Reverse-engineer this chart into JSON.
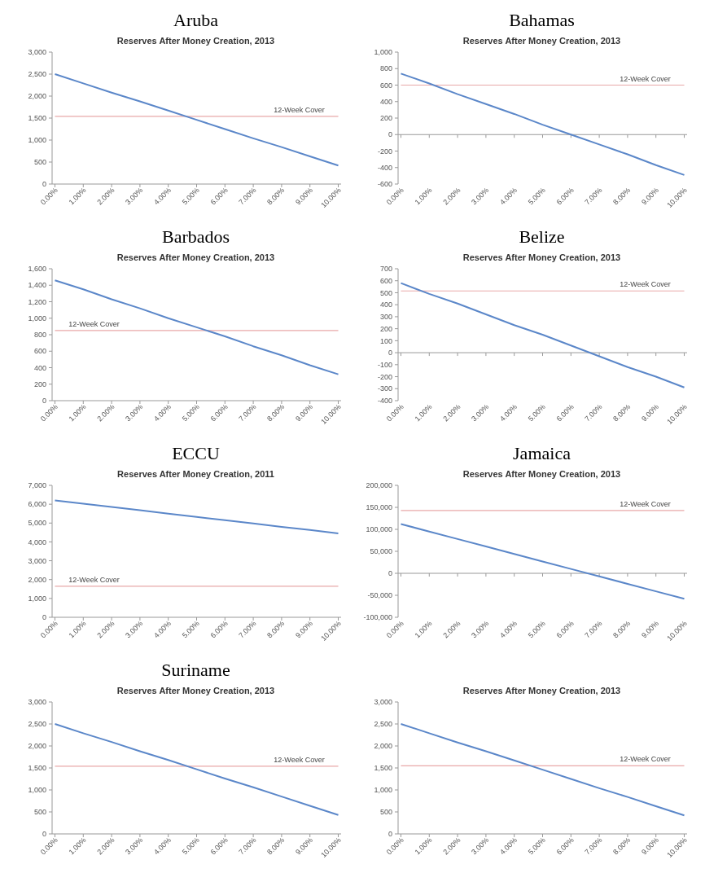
{
  "chart_data": [
    {
      "type": "line",
      "title": "Aruba",
      "subtitle": "Reserves After Money Creation, 2013",
      "categories": [
        "0.00%",
        "1.00%",
        "2.00%",
        "3.00%",
        "4.00%",
        "5.00%",
        "6.00%",
        "7.00%",
        "8.00%",
        "9.00%",
        "10.00%"
      ],
      "series": [
        {
          "color": "#5b87c9",
          "values": [
            2500,
            2290,
            2080,
            1880,
            1670,
            1460,
            1250,
            1040,
            840,
            630,
            420
          ]
        }
      ],
      "ylim": [
        0,
        3000
      ],
      "yticks": [
        0,
        500,
        {
          "value": 1000,
          "label": "1,000"
        },
        {
          "value": 1500,
          "label": "1,500"
        },
        {
          "value": 2000,
          "label": "2,000"
        },
        {
          "value": 2500,
          "label": "2,500"
        },
        {
          "value": 3000,
          "label": "3,000"
        }
      ],
      "ref_lines": [
        {
          "axis": "y",
          "value": 1540,
          "label": "12-Week Cover",
          "color": "#e8a8a8"
        }
      ]
    },
    {
      "type": "line",
      "title": "Bahamas",
      "subtitle": "Reserves After Money Creation, 2013",
      "categories": [
        "0.00%",
        "1.00%",
        "2.00%",
        "3.00%",
        "4.00%",
        "5.00%",
        "6.00%",
        "7.00%",
        "8.00%",
        "9.00%",
        "10.00%"
      ],
      "series": [
        {
          "color": "#5b87c9",
          "values": [
            740,
            620,
            490,
            370,
            250,
            120,
            0,
            -120,
            -240,
            -370,
            -490
          ]
        }
      ],
      "ylim": [
        -600,
        1000
      ],
      "yticks": [
        -600,
        -400,
        -200,
        0,
        200,
        400,
        600,
        800,
        {
          "value": 1000,
          "label": "1,000"
        }
      ],
      "ref_lines": [
        {
          "axis": "y",
          "value": 600,
          "label": "12-Week Cover",
          "color": "#e8a8a8"
        }
      ]
    },
    {
      "type": "line",
      "title": "Barbados",
      "subtitle": "Reserves After Money Creation, 2013",
      "categories": [
        "0.00%",
        "1.00%",
        "2.00%",
        "3.00%",
        "4.00%",
        "5.00%",
        "6.00%",
        "7.00%",
        "8.00%",
        "9.00%",
        "10.00%"
      ],
      "series": [
        {
          "color": "#5b87c9",
          "values": [
            1460,
            1350,
            1230,
            1120,
            1000,
            890,
            780,
            660,
            550,
            430,
            320
          ]
        }
      ],
      "ylim": [
        0,
        1600
      ],
      "yticks": [
        0,
        200,
        400,
        600,
        800,
        {
          "value": 1000,
          "label": "1,000"
        },
        {
          "value": 1200,
          "label": "1,200"
        },
        {
          "value": 1400,
          "label": "1,400"
        },
        {
          "value": 1600,
          "label": "1,600"
        }
      ],
      "ref_lines": [
        {
          "axis": "y",
          "value": 850,
          "label": "12-Week Cover",
          "color": "#e8a8a8"
        }
      ]
    },
    {
      "type": "line",
      "title": "Belize",
      "subtitle": "Reserves After Money Creation, 2013",
      "categories": [
        "0.00%",
        "1.00%",
        "2.00%",
        "3.00%",
        "4.00%",
        "5.00%",
        "6.00%",
        "7.00%",
        "8.00%",
        "9.00%",
        "10.00%"
      ],
      "series": [
        {
          "color": "#5b87c9",
          "values": [
            580,
            490,
            410,
            320,
            230,
            150,
            60,
            -30,
            -120,
            -200,
            -290
          ]
        }
      ],
      "ylim": [
        -400,
        700
      ],
      "yticks": [
        -400,
        -300,
        -200,
        -100,
        0,
        100,
        200,
        300,
        400,
        500,
        600,
        700
      ],
      "ref_lines": [
        {
          "axis": "y",
          "value": 515,
          "label": "12-Week Cover",
          "color": "#e8a8a8"
        }
      ]
    },
    {
      "type": "line",
      "title": "ECCU",
      "subtitle": "Reserves After Money Creation, 2011",
      "categories": [
        "0.00%",
        "1.00%",
        "2.00%",
        "3.00%",
        "4.00%",
        "5.00%",
        "6.00%",
        "7.00%",
        "8.00%",
        "9.00%",
        "10.00%"
      ],
      "series": [
        {
          "color": "#5b87c9",
          "values": [
            6200,
            6030,
            5850,
            5680,
            5500,
            5330,
            5150,
            4980,
            4800,
            4630,
            4450
          ]
        }
      ],
      "ylim": [
        0,
        7000
      ],
      "yticks": [
        0,
        {
          "value": 1000,
          "label": "1,000"
        },
        {
          "value": 2000,
          "label": "2,000"
        },
        {
          "value": 3000,
          "label": "3,000"
        },
        {
          "value": 4000,
          "label": "4,000"
        },
        {
          "value": 5000,
          "label": "5,000"
        },
        {
          "value": 6000,
          "label": "6,000"
        },
        {
          "value": 7000,
          "label": "7,000"
        }
      ],
      "ref_lines": [
        {
          "axis": "y",
          "value": 1650,
          "label": "12-Week Cover",
          "color": "#e8a8a8"
        }
      ]
    },
    {
      "type": "line",
      "title": "Jamaica",
      "subtitle": "Reserves After Money Creation, 2013",
      "categories": [
        "0.00%",
        "1.00%",
        "2.00%",
        "3.00%",
        "4.00%",
        "5.00%",
        "6.00%",
        "7.00%",
        "8.00%",
        "9.00%",
        "10.00%"
      ],
      "series": [
        {
          "color": "#5b87c9",
          "values": [
            112000,
            95000,
            78000,
            61000,
            44000,
            27000,
            10000,
            -7000,
            -24000,
            -41000,
            -58000
          ]
        }
      ],
      "ylim": [
        -100000,
        200000
      ],
      "yticks": [
        {
          "value": -100000,
          "label": "-100,000"
        },
        {
          "value": -50000,
          "label": "-50,000"
        },
        0,
        {
          "value": 50000,
          "label": "50,000"
        },
        {
          "value": 100000,
          "label": "100,000"
        },
        {
          "value": 150000,
          "label": "150,000"
        },
        {
          "value": 200000,
          "label": "200,000"
        }
      ],
      "ref_lines": [
        {
          "axis": "y",
          "value": 143000,
          "label": "12-Week Cover",
          "color": "#e8a8a8"
        }
      ]
    },
    {
      "type": "line",
      "title": "Suriname",
      "subtitle": "Reserves After Money Creation, 2013",
      "categories": [
        "0.00%",
        "1.00%",
        "2.00%",
        "3.00%",
        "4.00%",
        "5.00%",
        "6.00%",
        "7.00%",
        "8.00%",
        "9.00%",
        "10.00%"
      ],
      "series": [
        {
          "color": "#5b87c9",
          "values": [
            2500,
            2290,
            2090,
            1880,
            1680,
            1470,
            1260,
            1060,
            850,
            640,
            430
          ]
        }
      ],
      "ylim": [
        0,
        3000
      ],
      "yticks": [
        0,
        500,
        {
          "value": 1000,
          "label": "1,000"
        },
        {
          "value": 1500,
          "label": "1,500"
        },
        {
          "value": 2000,
          "label": "2,000"
        },
        {
          "value": 2500,
          "label": "2,500"
        },
        {
          "value": 3000,
          "label": "3,000"
        }
      ],
      "ref_lines": [
        {
          "axis": "y",
          "value": 1540,
          "label": "12-Week Cover",
          "color": "#e8a8a8"
        }
      ]
    },
    {
      "type": "line",
      "subtitle": "Reserves After Money Creation, 2013",
      "categories": [
        "0.00%",
        "1.00%",
        "2.00%",
        "3.00%",
        "4.00%",
        "5.00%",
        "6.00%",
        "7.00%",
        "8.00%",
        "9.00%",
        "10.00%"
      ],
      "series": [
        {
          "color": "#5b87c9",
          "values": [
            2500,
            2290,
            2080,
            1880,
            1670,
            1460,
            1250,
            1040,
            840,
            630,
            420
          ]
        }
      ],
      "ylim": [
        0,
        3000
      ],
      "yticks": [
        0,
        500,
        {
          "value": 1000,
          "label": "1,000"
        },
        {
          "value": 1500,
          "label": "1,500"
        },
        {
          "value": 2000,
          "label": "2,000"
        },
        {
          "value": 2500,
          "label": "2,500"
        },
        {
          "value": 3000,
          "label": "3,000"
        }
      ],
      "ref_lines": [
        {
          "axis": "y",
          "value": 1550,
          "label": "12-Week Cover",
          "color": "#e8a8a8"
        }
      ]
    }
  ]
}
